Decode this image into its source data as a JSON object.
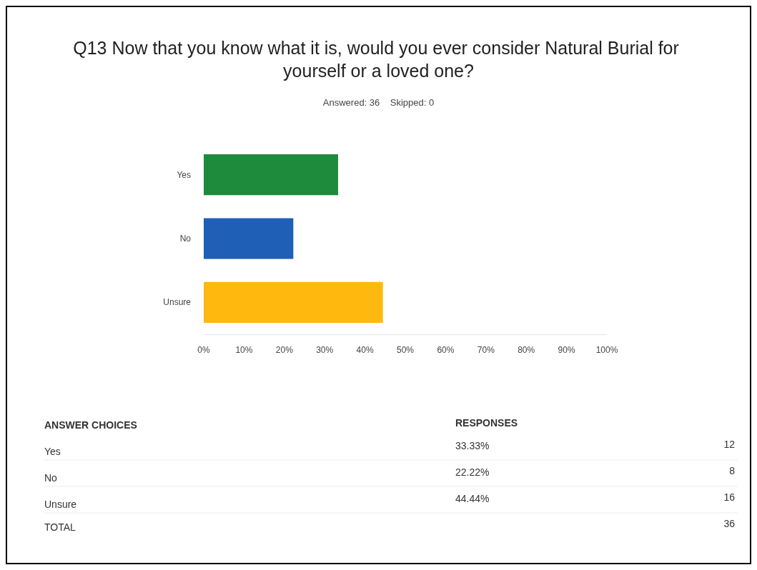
{
  "chart_data": {
    "type": "bar",
    "orientation": "horizontal",
    "title": "Q13 Now that you know what it is, would you ever consider Natural Burial for yourself or a loved one?",
    "subtitle": "Answered: 36    Skipped: 0",
    "categories": [
      "Yes",
      "No",
      "Unsure"
    ],
    "values": [
      33.33,
      22.22,
      44.44
    ],
    "colors": [
      "#1e8b3c",
      "#1f5fb5",
      "#ffb80d"
    ],
    "xlim": [
      0,
      100
    ],
    "xticks": [
      {
        "value": 0,
        "label": "0%"
      },
      {
        "value": 10,
        "label": "10%"
      },
      {
        "value": 20,
        "label": "20%"
      },
      {
        "value": 30,
        "label": "30%"
      },
      {
        "value": 40,
        "label": "40%"
      },
      {
        "value": 50,
        "label": "50%"
      },
      {
        "value": 60,
        "label": "60%"
      },
      {
        "value": 70,
        "label": "70%"
      },
      {
        "value": 80,
        "label": "80%"
      },
      {
        "value": 90,
        "label": "90%"
      },
      {
        "value": 100,
        "label": "100%"
      }
    ],
    "grid": false,
    "annotations": [
      "ANSWER CHOICES",
      "RESPONSES",
      "33.33%",
      "22.22%",
      "44.44%",
      "12",
      "8",
      "16",
      "TOTAL",
      "36"
    ]
  }
}
